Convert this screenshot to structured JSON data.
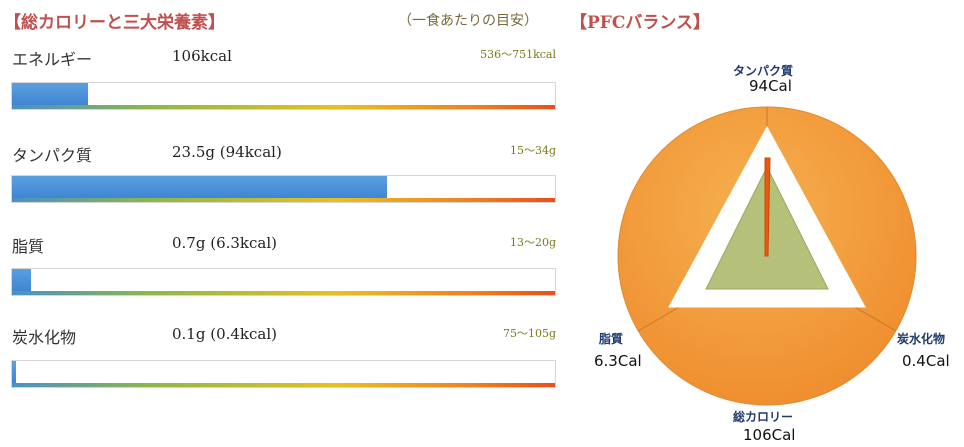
{
  "header": {
    "left_title": "【総カロリーと三大栄養素】",
    "note": "（一食あたりの目安）",
    "right_title": "【PFCバランス】"
  },
  "rows": [
    {
      "label": "エネルギー",
      "value": "106kcal",
      "range": "536〜751kcal",
      "fill": 0.14
    },
    {
      "label": "タンパク質",
      "value": "23.5g (94kcal)",
      "range": "15〜34g",
      "fill": 0.69
    },
    {
      "label": "脂質",
      "value": "0.7g (6.3kcal)",
      "range": "13〜20g",
      "fill": 0.035
    },
    {
      "label": "炭水化物",
      "value": "0.1g (0.4kcal)",
      "range": "75〜105g",
      "fill": 0.008
    }
  ],
  "chart_data": {
    "type": "radar",
    "title": "【PFCバランス】",
    "axes": [
      {
        "name": "タンパク質",
        "value_label": "94Cal",
        "value": 94
      },
      {
        "name": "炭水化物",
        "value_label": "0.4Cal",
        "value": 0.4
      },
      {
        "name": "脂質",
        "value_label": "6.3Cal",
        "value": 6.3
      }
    ],
    "bottom": {
      "name": "総カロリー",
      "value_label": "106Cal",
      "value": 106
    },
    "colors": {
      "circle": "#f39a3c",
      "triangle_fill": "#b5c07a",
      "protein_line": "#e85a10"
    }
  }
}
